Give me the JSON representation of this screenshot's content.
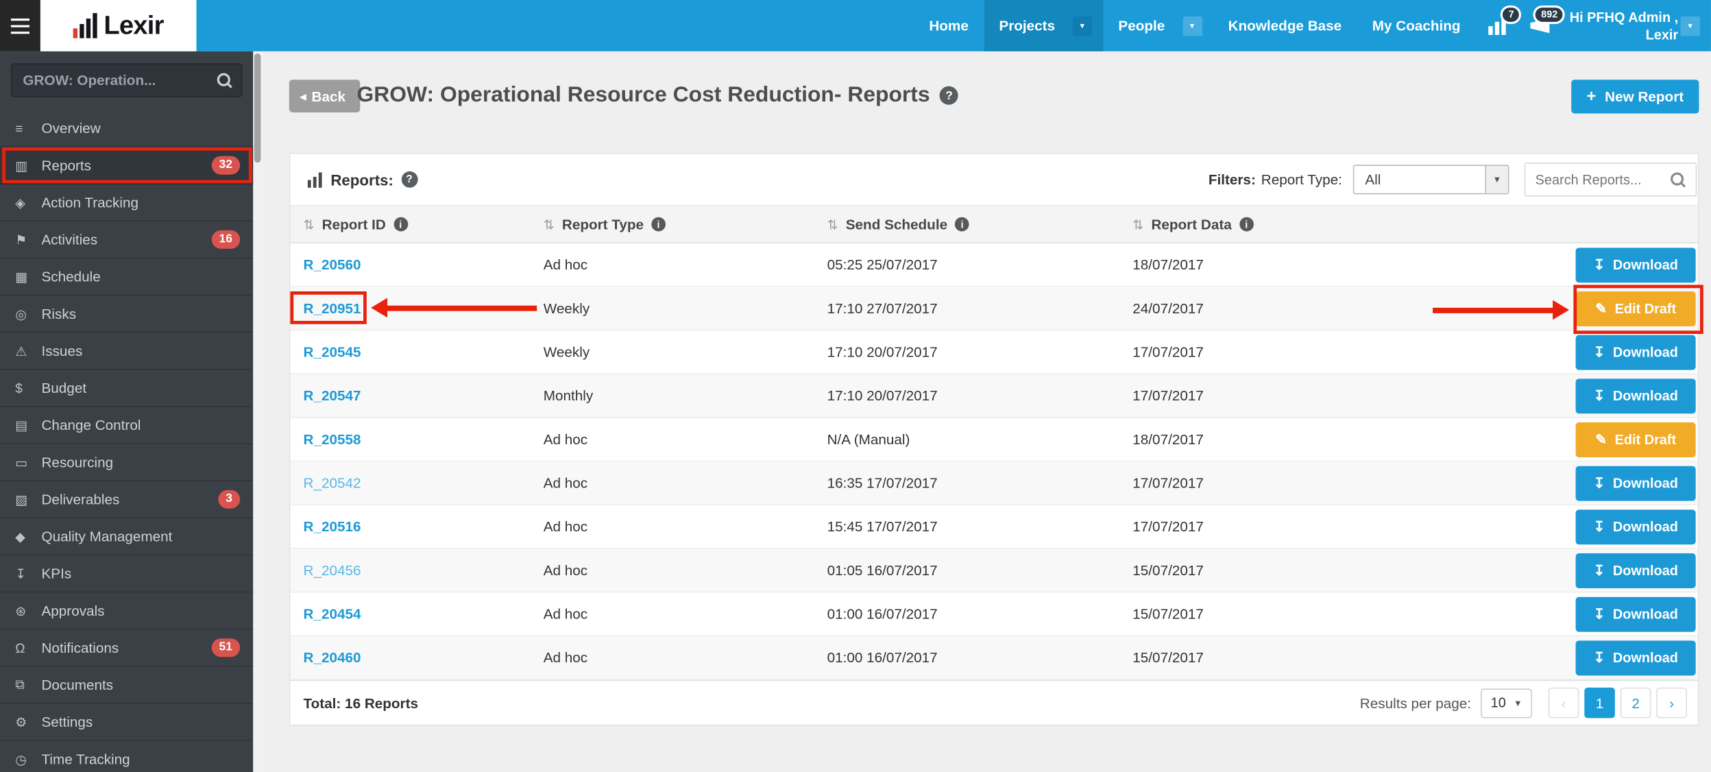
{
  "topnav": {
    "brand": "Lexir",
    "items": [
      {
        "label": "Home",
        "active": false,
        "dropdown": false
      },
      {
        "label": "Projects",
        "active": true,
        "dropdown": true
      },
      {
        "label": "People",
        "active": false,
        "dropdown": true
      },
      {
        "label": "Knowledge Base",
        "active": false,
        "dropdown": false
      },
      {
        "label": "My Coaching",
        "active": false,
        "dropdown": false
      }
    ],
    "icons": [
      {
        "name": "stats-icon",
        "badge": "7"
      },
      {
        "name": "megaphone-icon",
        "badge": "892"
      }
    ],
    "user_line1": "Hi PFHQ Admin ,",
    "user_line2": "Lexir"
  },
  "sidebar": {
    "search_value": "GROW: Operation...",
    "items": [
      {
        "label": "Overview",
        "icon": "list-icon"
      },
      {
        "label": "Reports",
        "icon": "bar-chart-icon",
        "badge": "32",
        "active": true
      },
      {
        "label": "Action Tracking",
        "icon": "diamond-icon"
      },
      {
        "label": "Activities",
        "icon": "flag-icon",
        "badge": "16"
      },
      {
        "label": "Schedule",
        "icon": "calendar-icon"
      },
      {
        "label": "Risks",
        "icon": "bulb-icon"
      },
      {
        "label": "Issues",
        "icon": "warning-icon"
      },
      {
        "label": "Budget",
        "icon": "dollar-icon"
      },
      {
        "label": "Change Control",
        "icon": "list-alt-icon"
      },
      {
        "label": "Resourcing",
        "icon": "folder-icon"
      },
      {
        "label": "Deliverables",
        "icon": "truck-icon",
        "badge": "3"
      },
      {
        "label": "Quality Management",
        "icon": "tag-icon"
      },
      {
        "label": "KPIs",
        "icon": "download-icon"
      },
      {
        "label": "Approvals",
        "icon": "certificate-icon"
      },
      {
        "label": "Notifications",
        "icon": "bell-icon",
        "badge": "51"
      },
      {
        "label": "Documents",
        "icon": "documents-icon"
      },
      {
        "label": "Settings",
        "icon": "gears-icon"
      },
      {
        "label": "Time Tracking",
        "icon": "clock-icon"
      }
    ]
  },
  "header": {
    "back_label": "Back",
    "title": "GROW: Operational Resource Cost Reduction",
    "title_suffix": " - Reports",
    "new_report_label": "New Report"
  },
  "toolbar": {
    "reports_label": "Reports:",
    "filters_label": "Filters:",
    "report_type_label": "Report Type:",
    "report_type_value": "All",
    "search_placeholder": "Search Reports..."
  },
  "table": {
    "columns": [
      "Report ID",
      "Report Type",
      "Send Schedule",
      "Report Data"
    ],
    "rows": [
      {
        "id": "R_20560",
        "type": "Ad hoc",
        "schedule": "05:25 25/07/2017",
        "report_data": "18/07/2017",
        "action": "Download"
      },
      {
        "id": "R_20951",
        "type": "Weekly",
        "schedule": "17:10 27/07/2017",
        "report_data": "24/07/2017",
        "action": "Edit Draft",
        "annotated": true
      },
      {
        "id": "R_20545",
        "type": "Weekly",
        "schedule": "17:10 20/07/2017",
        "report_data": "17/07/2017",
        "action": "Download"
      },
      {
        "id": "R_20547",
        "type": "Monthly",
        "schedule": "17:10 20/07/2017",
        "report_data": "17/07/2017",
        "action": "Download"
      },
      {
        "id": "R_20558",
        "type": "Ad hoc",
        "schedule": "N/A (Manual)",
        "report_data": "18/07/2017",
        "action": "Edit Draft"
      },
      {
        "id": "R_20542",
        "type": "Ad hoc",
        "schedule": "16:35 17/07/2017",
        "report_data": "17/07/2017",
        "action": "Download",
        "visited": true
      },
      {
        "id": "R_20516",
        "type": "Ad hoc",
        "schedule": "15:45 17/07/2017",
        "report_data": "17/07/2017",
        "action": "Download"
      },
      {
        "id": "R_20456",
        "type": "Ad hoc",
        "schedule": "01:05 16/07/2017",
        "report_data": "15/07/2017",
        "action": "Download",
        "visited": true
      },
      {
        "id": "R_20454",
        "type": "Ad hoc",
        "schedule": "01:00 16/07/2017",
        "report_data": "15/07/2017",
        "action": "Download"
      },
      {
        "id": "R_20460",
        "type": "Ad hoc",
        "schedule": "01:00 16/07/2017",
        "report_data": "15/07/2017",
        "action": "Download"
      }
    ]
  },
  "footer": {
    "total": "Total: 16 Reports",
    "results_per_page_label": "Results per page:",
    "results_per_page_value": "10",
    "pages": [
      "1",
      "2"
    ],
    "active_page": "1"
  },
  "colors": {
    "nav_blue": "#1b9cd8",
    "nav_blue_active": "#1487bd",
    "sidebar_bg": "#3b4046",
    "badge_red": "#d9534f",
    "link_blue": "#1d9ad6",
    "warning_yellow": "#f2ab27",
    "annotation_red": "#e8220d"
  }
}
